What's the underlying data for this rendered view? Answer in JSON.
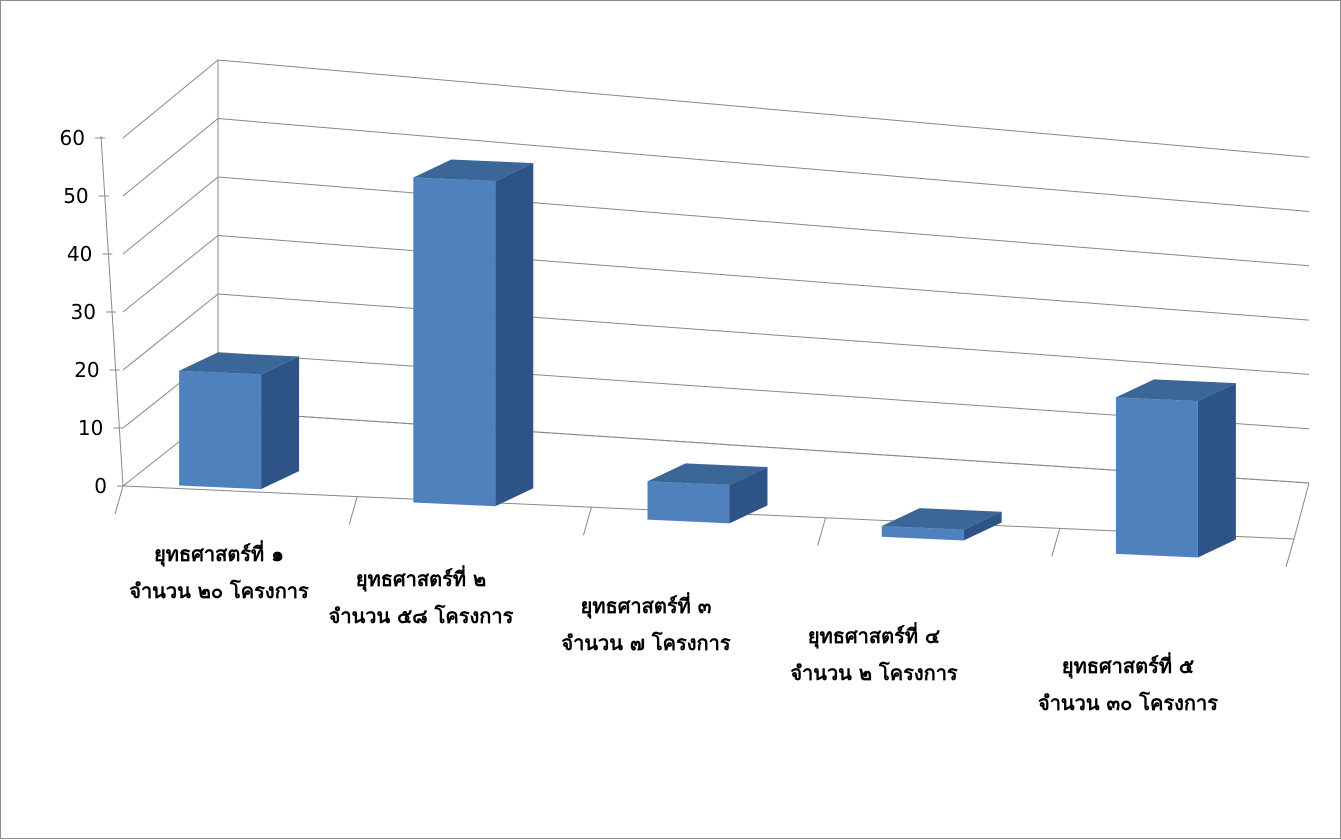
{
  "chart_data": {
    "type": "bar",
    "title": "",
    "xlabel": "",
    "ylabel": "",
    "ylim": [
      0,
      60
    ],
    "yticks": [
      0,
      10,
      20,
      30,
      40,
      50,
      60
    ],
    "grid": true,
    "legend": "none",
    "categories": [
      [
        "ยุทธศาสตร์ที่ ๑",
        "จำนวน ๒๐ โครงการ"
      ],
      [
        "ยุทธศาสตร์ที่ ๒",
        "จำนวน ๕๘ โครงการ"
      ],
      [
        "ยุทธศาสตร์ที่ ๓",
        "จำนวน ๗ โครงการ"
      ],
      [
        "ยุทธศาสตร์ที่ ๔",
        "จำนวน ๒ โครงการ"
      ],
      [
        "ยุทธศาสตร์ที่ ๕",
        "จำนวน ๓๐ โครงการ"
      ]
    ],
    "values": [
      20,
      58,
      7,
      2,
      30
    ],
    "colors": {
      "front": "#4f81bd",
      "top": "#3b6698",
      "side": "#2e5387",
      "grid": "#888888"
    }
  }
}
